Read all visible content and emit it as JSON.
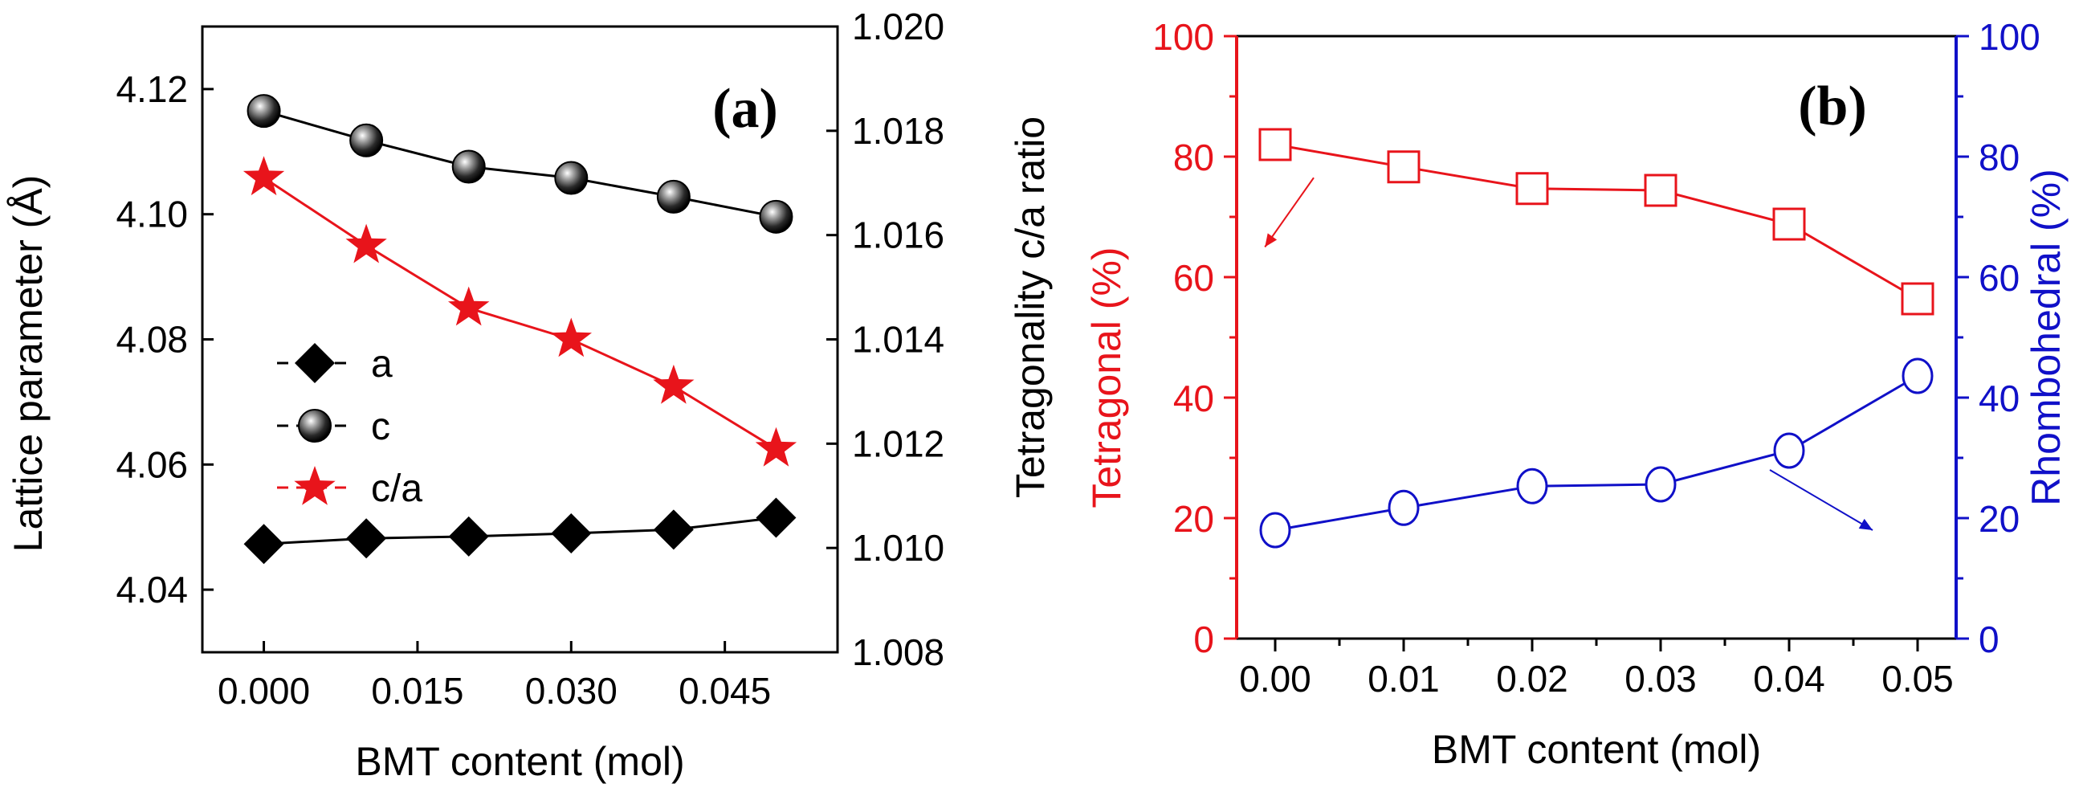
{
  "colors": {
    "black": "#000000",
    "red": "#e8141b",
    "blue": "#1010c8"
  },
  "chart_data": [
    {
      "type": "line",
      "panel_label": "(a)",
      "xlabel": "BMT content (mol)",
      "ylabel": "Lattice parameter (Å)",
      "y2label": "Tetragonality c/a ratio",
      "xlim": [
        -0.006,
        0.056
      ],
      "ylim": [
        4.03,
        4.13
      ],
      "y2lim": [
        1.008,
        1.02
      ],
      "x_ticks": [
        "0.000",
        "0.015",
        "0.030",
        "0.045"
      ],
      "x_tick_values": [
        0.0,
        0.015,
        0.03,
        0.045
      ],
      "y_ticks": [
        "4.04",
        "4.06",
        "4.08",
        "4.10",
        "4.12"
      ],
      "y_tick_values": [
        4.04,
        4.06,
        4.08,
        4.1,
        4.12
      ],
      "y2_ticks": [
        "1.008",
        "1.010",
        "1.012",
        "1.014",
        "1.016",
        "1.018",
        "1.020"
      ],
      "y2_tick_values": [
        1.008,
        1.01,
        1.012,
        1.014,
        1.016,
        1.018,
        1.02
      ],
      "x": [
        0.0,
        0.01,
        0.02,
        0.03,
        0.04,
        0.05
      ],
      "legend_position": "center-left",
      "series": [
        {
          "name": "a",
          "axis": "left",
          "marker": "diamond",
          "color": "#000000",
          "values": [
            4.0473,
            4.0482,
            4.0485,
            4.049,
            4.0496,
            4.0515
          ]
        },
        {
          "name": "c",
          "axis": "left",
          "marker": "sphere",
          "color": "#000000",
          "values": [
            4.1165,
            4.1118,
            4.1076,
            4.1058,
            4.1028,
            4.0996
          ]
        },
        {
          "name": "c/a",
          "axis": "right",
          "marker": "star",
          "color": "#e8141b",
          "values": [
            1.0171,
            1.0158,
            1.0146,
            1.014,
            1.0131,
            1.0119
          ]
        }
      ]
    },
    {
      "type": "line",
      "panel_label": "(b)",
      "xlabel": "BMT content (mol)",
      "ylabel": "Tetragonal (%)",
      "y2label": "Rhombohedral (%)",
      "xlim": [
        -0.003,
        0.053
      ],
      "ylim": [
        0,
        100
      ],
      "y2lim": [
        0,
        100
      ],
      "x_ticks": [
        "0.00",
        "0.01",
        "0.02",
        "0.03",
        "0.04",
        "0.05"
      ],
      "x_tick_values": [
        0.0,
        0.01,
        0.02,
        0.03,
        0.04,
        0.05
      ],
      "y_ticks": [
        "0",
        "20",
        "40",
        "60",
        "80",
        "100"
      ],
      "y_tick_values": [
        0,
        20,
        40,
        60,
        80,
        100
      ],
      "y2_ticks": [
        "0",
        "20",
        "40",
        "60",
        "80",
        "100"
      ],
      "y2_tick_values": [
        0,
        20,
        40,
        60,
        80,
        100
      ],
      "x": [
        0.0,
        0.01,
        0.02,
        0.03,
        0.04,
        0.05
      ],
      "series": [
        {
          "axis": "left",
          "marker": "open-square",
          "color": "#e8141b",
          "values": [
            82,
            78.3,
            74.7,
            74.4,
            68.8,
            56.4
          ]
        },
        {
          "axis": "right",
          "marker": "open-circle",
          "color": "#1010c8",
          "values": [
            18,
            21.7,
            25.3,
            25.6,
            31.2,
            43.6
          ]
        }
      ],
      "annotations": [
        {
          "type": "arrow",
          "color": "#e8141b",
          "from": [
            0.003,
            76.5
          ],
          "to": [
            -0.0008,
            65
          ],
          "meaning": "points to Tetragonal axis"
        },
        {
          "type": "arrow",
          "color": "#1010c8",
          "from": [
            0.0385,
            28
          ],
          "to": [
            0.0465,
            18
          ],
          "meaning": "points to Rhombohedral axis"
        }
      ]
    }
  ]
}
